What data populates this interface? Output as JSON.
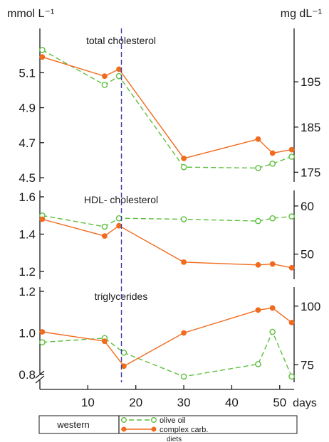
{
  "chart_data": {
    "type": "line",
    "left_unit": "mmol L⁻¹",
    "right_unit": "mg dL⁻¹",
    "xlabel": "days",
    "x_ticks": [
      "10",
      "20",
      "30",
      "40",
      "50"
    ],
    "xlim": [
      0,
      53
    ],
    "diet_change_day": 17,
    "colors": {
      "olive_oil": "#5cbf3c",
      "complex_carb": "#f06b1e",
      "divider": "#3a3aa0"
    },
    "panels": [
      {
        "title": "total cholesterol",
        "ylim": [
          4.5,
          5.28
        ],
        "left_ticks": [
          4.5,
          4.7,
          4.9,
          5.1
        ],
        "left_tick_labels": [
          "4.5",
          "4.7",
          "4.9",
          "5.1"
        ],
        "right_ticks": [
          4.531,
          4.789,
          5.048
        ],
        "right_tick_labels": [
          "175",
          "185",
          "195"
        ],
        "series": [
          {
            "key": "olive_oil",
            "x": [
              0.5,
              13.5,
              16.5,
              30,
              45.5,
              48.5,
              52.5
            ],
            "y": [
              5.23,
              5.03,
              5.08,
              4.56,
              4.555,
              4.58,
              4.62
            ]
          },
          {
            "key": "complex_carb",
            "x": [
              0.5,
              13.5,
              16.5,
              30,
              45.5,
              48.5,
              52.5
            ],
            "y": [
              5.19,
              5.08,
              5.12,
              4.61,
              4.72,
              4.64,
              4.66
            ]
          }
        ]
      },
      {
        "title": "HDL- cholesterol",
        "ylim": [
          1.2,
          1.6
        ],
        "left_ticks": [
          1.2,
          1.4,
          1.6
        ],
        "left_tick_labels": [
          "1.2",
          "1.4",
          "1.6"
        ],
        "right_ticks": [
          1.293,
          1.551
        ],
        "right_tick_labels": [
          "50",
          "60"
        ],
        "series": [
          {
            "key": "olive_oil",
            "x": [
              0.5,
              13.5,
              16.5,
              30,
              45.5,
              48.5,
              52.5
            ],
            "y": [
              1.5,
              1.44,
              1.485,
              1.48,
              1.47,
              1.485,
              1.495
            ]
          },
          {
            "key": "complex_carb",
            "x": [
              0.5,
              13.5,
              16.5,
              30,
              45.5,
              48.5,
              52.5
            ],
            "y": [
              1.48,
              1.39,
              1.445,
              1.25,
              1.235,
              1.24,
              1.22
            ]
          }
        ]
      },
      {
        "title": "triglycerides",
        "ylim": [
          0.8,
          1.2
        ],
        "left_ticks": [
          0.8,
          1.0,
          1.2
        ],
        "left_tick_labels": [
          "0.8",
          "1.0",
          "1.2"
        ],
        "right_ticks": [
          0.847,
          1.129
        ],
        "right_tick_labels": [
          "75",
          "100"
        ],
        "series": [
          {
            "key": "olive_oil",
            "x": [
              0.5,
              13.5,
              17.5,
              30,
              45.5,
              48.5,
              52.5
            ],
            "y": [
              0.955,
              0.975,
              0.905,
              0.79,
              0.85,
              1.005,
              0.79
            ]
          },
          {
            "key": "complex_carb",
            "x": [
              0.5,
              13.5,
              17.5,
              30,
              45.5,
              48.5,
              52.5
            ],
            "y": [
              1.005,
              0.96,
              0.84,
              1.0,
              1.11,
              1.12,
              1.05
            ]
          }
        ]
      }
    ]
  },
  "legend": {
    "phase_label": "western",
    "olive_oil_label": "olive oil",
    "complex_carb_label": "complex carb.",
    "footer_label": "diets"
  }
}
